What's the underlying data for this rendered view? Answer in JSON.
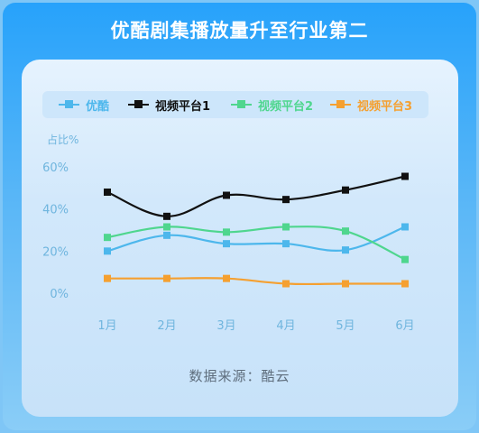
{
  "title": "优酷剧集播放量升至行业第二",
  "source": "数据来源：酷云",
  "chart_data": {
    "type": "line",
    "ylabel": "占比%",
    "categories": [
      "1月",
      "2月",
      "3月",
      "4月",
      "5月",
      "6月"
    ],
    "y_ticks": [
      "0%",
      "20%",
      "40%",
      "60%"
    ],
    "ylim": [
      0,
      60
    ],
    "grid": false,
    "legend_position": "top",
    "series": [
      {
        "name": "优酷",
        "color": "#4db7ec",
        "values": [
          20,
          27.5,
          23.5,
          23.5,
          20.5,
          31.5
        ]
      },
      {
        "name": "视频平台1",
        "color": "#111111",
        "values": [
          48,
          36.5,
          46.5,
          44.5,
          49,
          55.5
        ]
      },
      {
        "name": "视频平台2",
        "color": "#4fd68e",
        "values": [
          26.5,
          31.5,
          29,
          31.5,
          29.5,
          16
        ]
      },
      {
        "name": "视频平台3",
        "color": "#f5a030",
        "values": [
          7,
          7,
          7,
          4.5,
          4.5,
          4.5
        ]
      }
    ]
  },
  "colors": {
    "axis_text": "#6fb5de",
    "background_outer": "#27a2fb",
    "card": "#d9ecfc"
  }
}
